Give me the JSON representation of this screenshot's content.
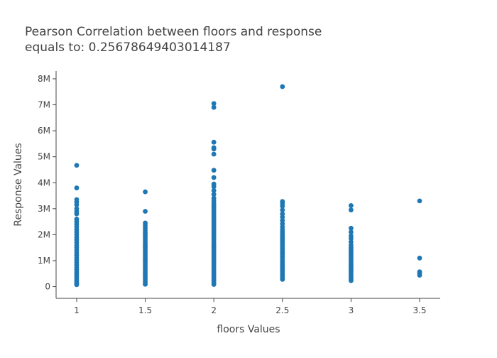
{
  "chart_data": {
    "type": "scatter",
    "title_lines": [
      "Pearson Correlation between floors and response",
      "equals to: 0.25678649403014187"
    ],
    "xlabel": "floors Values",
    "ylabel": "Response Values",
    "xlim": [
      0.85,
      3.65
    ],
    "ylim": [
      -450000,
      8300000
    ],
    "x_ticks": [
      1,
      1.5,
      2,
      2.5,
      3,
      3.5
    ],
    "x_tick_labels": [
      "1",
      "1.5",
      "2",
      "2.5",
      "3",
      "3.5"
    ],
    "y_ticks": [
      0,
      1000000,
      2000000,
      3000000,
      4000000,
      5000000,
      6000000,
      7000000,
      8000000
    ],
    "y_tick_labels": [
      "0",
      "1M",
      "2M",
      "3M",
      "4M",
      "5M",
      "6M",
      "7M",
      "8M"
    ],
    "marker_color": "#1f77b4",
    "grid": false,
    "series": [
      {
        "points": [
          [
            1,
            75000
          ],
          [
            1,
            120000
          ],
          [
            1,
            180000
          ],
          [
            1,
            250000
          ],
          [
            1,
            320000
          ],
          [
            1,
            400000
          ],
          [
            1,
            480000
          ],
          [
            1,
            560000
          ],
          [
            1,
            650000
          ],
          [
            1,
            740000
          ],
          [
            1,
            830000
          ],
          [
            1,
            920000
          ],
          [
            1,
            1010000
          ],
          [
            1,
            1100000
          ],
          [
            1,
            1200000
          ],
          [
            1,
            1300000
          ],
          [
            1,
            1400000
          ],
          [
            1,
            1500000
          ],
          [
            1,
            1600000
          ],
          [
            1,
            1700000
          ],
          [
            1,
            1800000
          ],
          [
            1,
            1900000
          ],
          [
            1,
            2000000
          ],
          [
            1,
            2100000
          ],
          [
            1,
            2200000
          ],
          [
            1,
            2300000
          ],
          [
            1,
            2400000
          ],
          [
            1,
            2500000
          ],
          [
            1,
            2600000
          ],
          [
            1,
            2800000
          ],
          [
            1,
            2900000
          ],
          [
            1,
            3000000
          ],
          [
            1,
            3150000
          ],
          [
            1,
            3250000
          ],
          [
            1,
            3350000
          ],
          [
            1,
            3800000
          ],
          [
            1,
            4670000
          ],
          [
            1.5,
            90000
          ],
          [
            1.5,
            150000
          ],
          [
            1.5,
            220000
          ],
          [
            1.5,
            300000
          ],
          [
            1.5,
            380000
          ],
          [
            1.5,
            460000
          ],
          [
            1.5,
            540000
          ],
          [
            1.5,
            620000
          ],
          [
            1.5,
            700000
          ],
          [
            1.5,
            780000
          ],
          [
            1.5,
            860000
          ],
          [
            1.5,
            940000
          ],
          [
            1.5,
            1020000
          ],
          [
            1.5,
            1100000
          ],
          [
            1.5,
            1180000
          ],
          [
            1.5,
            1260000
          ],
          [
            1.5,
            1340000
          ],
          [
            1.5,
            1420000
          ],
          [
            1.5,
            1500000
          ],
          [
            1.5,
            1580000
          ],
          [
            1.5,
            1660000
          ],
          [
            1.5,
            1740000
          ],
          [
            1.5,
            1820000
          ],
          [
            1.5,
            1900000
          ],
          [
            1.5,
            1980000
          ],
          [
            1.5,
            2060000
          ],
          [
            1.5,
            2150000
          ],
          [
            1.5,
            2250000
          ],
          [
            1.5,
            2350000
          ],
          [
            1.5,
            2450000
          ],
          [
            1.5,
            2900000
          ],
          [
            1.5,
            3650000
          ],
          [
            2,
            85000
          ],
          [
            2,
            150000
          ],
          [
            2,
            230000
          ],
          [
            2,
            310000
          ],
          [
            2,
            390000
          ],
          [
            2,
            470000
          ],
          [
            2,
            550000
          ],
          [
            2,
            630000
          ],
          [
            2,
            710000
          ],
          [
            2,
            790000
          ],
          [
            2,
            870000
          ],
          [
            2,
            950000
          ],
          [
            2,
            1030000
          ],
          [
            2,
            1110000
          ],
          [
            2,
            1190000
          ],
          [
            2,
            1270000
          ],
          [
            2,
            1350000
          ],
          [
            2,
            1430000
          ],
          [
            2,
            1510000
          ],
          [
            2,
            1590000
          ],
          [
            2,
            1670000
          ],
          [
            2,
            1750000
          ],
          [
            2,
            1830000
          ],
          [
            2,
            1910000
          ],
          [
            2,
            1990000
          ],
          [
            2,
            2070000
          ],
          [
            2,
            2150000
          ],
          [
            2,
            2230000
          ],
          [
            2,
            2310000
          ],
          [
            2,
            2390000
          ],
          [
            2,
            2470000
          ],
          [
            2,
            2550000
          ],
          [
            2,
            2630000
          ],
          [
            2,
            2710000
          ],
          [
            2,
            2790000
          ],
          [
            2,
            2870000
          ],
          [
            2,
            2950000
          ],
          [
            2,
            3030000
          ],
          [
            2,
            3110000
          ],
          [
            2,
            3200000
          ],
          [
            2,
            3300000
          ],
          [
            2,
            3400000
          ],
          [
            2,
            3550000
          ],
          [
            2,
            3700000
          ],
          [
            2,
            3850000
          ],
          [
            2,
            3950000
          ],
          [
            2,
            4200000
          ],
          [
            2,
            4480000
          ],
          [
            2,
            5100000
          ],
          [
            2,
            5300000
          ],
          [
            2,
            5350000
          ],
          [
            2,
            5560000
          ],
          [
            2,
            6900000
          ],
          [
            2,
            7050000
          ],
          [
            2.5,
            280000
          ],
          [
            2.5,
            360000
          ],
          [
            2.5,
            440000
          ],
          [
            2.5,
            520000
          ],
          [
            2.5,
            600000
          ],
          [
            2.5,
            680000
          ],
          [
            2.5,
            760000
          ],
          [
            2.5,
            840000
          ],
          [
            2.5,
            920000
          ],
          [
            2.5,
            1000000
          ],
          [
            2.5,
            1080000
          ],
          [
            2.5,
            1160000
          ],
          [
            2.5,
            1240000
          ],
          [
            2.5,
            1320000
          ],
          [
            2.5,
            1400000
          ],
          [
            2.5,
            1480000
          ],
          [
            2.5,
            1560000
          ],
          [
            2.5,
            1640000
          ],
          [
            2.5,
            1720000
          ],
          [
            2.5,
            1800000
          ],
          [
            2.5,
            1880000
          ],
          [
            2.5,
            1960000
          ],
          [
            2.5,
            2040000
          ],
          [
            2.5,
            2120000
          ],
          [
            2.5,
            2200000
          ],
          [
            2.5,
            2300000
          ],
          [
            2.5,
            2420000
          ],
          [
            2.5,
            2550000
          ],
          [
            2.5,
            2680000
          ],
          [
            2.5,
            2800000
          ],
          [
            2.5,
            2950000
          ],
          [
            2.5,
            3100000
          ],
          [
            2.5,
            3200000
          ],
          [
            2.5,
            3280000
          ],
          [
            2.5,
            7700000
          ],
          [
            3,
            230000
          ],
          [
            3,
            300000
          ],
          [
            3,
            370000
          ],
          [
            3,
            440000
          ],
          [
            3,
            510000
          ],
          [
            3,
            580000
          ],
          [
            3,
            650000
          ],
          [
            3,
            720000
          ],
          [
            3,
            790000
          ],
          [
            3,
            860000
          ],
          [
            3,
            930000
          ],
          [
            3,
            1000000
          ],
          [
            3,
            1070000
          ],
          [
            3,
            1140000
          ],
          [
            3,
            1210000
          ],
          [
            3,
            1280000
          ],
          [
            3,
            1350000
          ],
          [
            3,
            1420000
          ],
          [
            3,
            1500000
          ],
          [
            3,
            1600000
          ],
          [
            3,
            1720000
          ],
          [
            3,
            1850000
          ],
          [
            3,
            1950000
          ],
          [
            3,
            2100000
          ],
          [
            3,
            2250000
          ],
          [
            3,
            2950000
          ],
          [
            3,
            3120000
          ],
          [
            3.5,
            440000
          ],
          [
            3.5,
            510000
          ],
          [
            3.5,
            570000
          ],
          [
            3.5,
            1100000
          ],
          [
            3.5,
            3300000
          ]
        ]
      }
    ]
  }
}
